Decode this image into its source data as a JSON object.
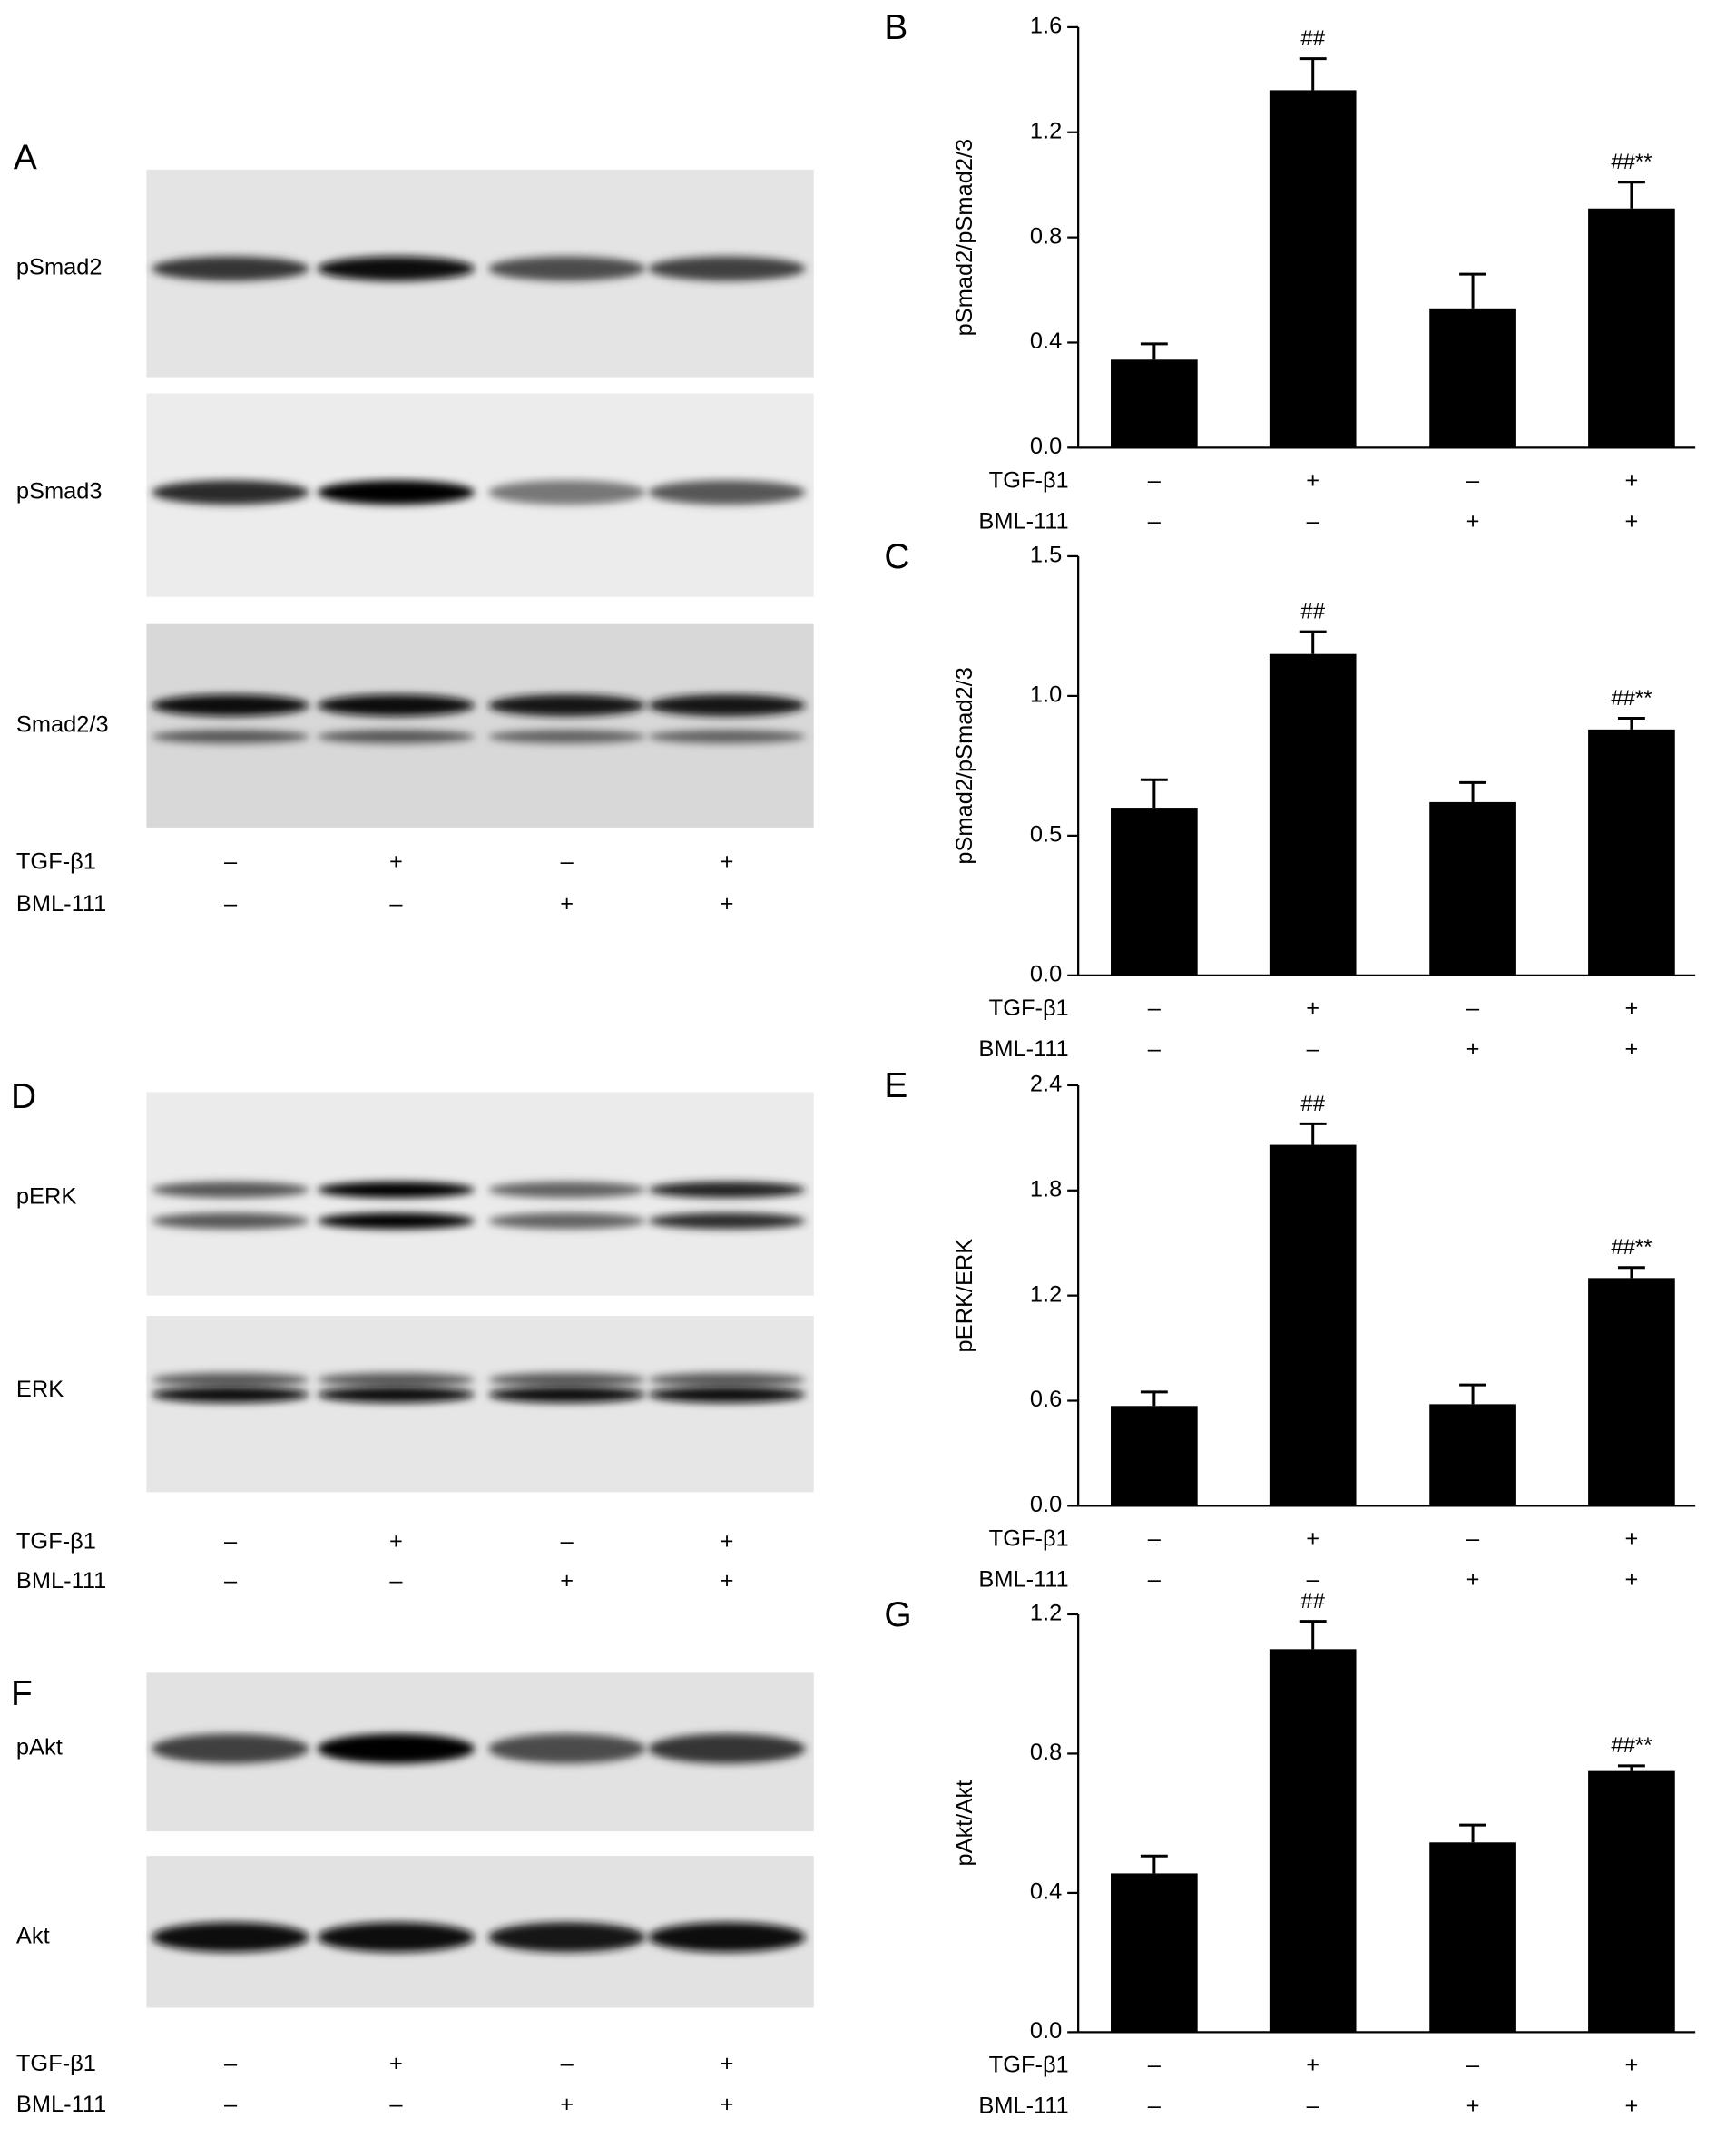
{
  "blots": [
    {
      "panel": "A",
      "proteins": [
        "pSmad2",
        "pSmad3",
        "Smad2/3"
      ],
      "treatments": [
        {
          "name": "TGF-β1",
          "signs": [
            "–",
            "+",
            "–",
            "+"
          ]
        },
        {
          "name": "BML-111",
          "signs": [
            "–",
            "–",
            "+",
            "+"
          ]
        }
      ]
    },
    {
      "panel": "D",
      "proteins": [
        "pERK",
        "ERK"
      ],
      "treatments": [
        {
          "name": "TGF-β1",
          "signs": [
            "–",
            "+",
            "–",
            "+"
          ]
        },
        {
          "name": "BML-111",
          "signs": [
            "–",
            "–",
            "+",
            "+"
          ]
        }
      ]
    },
    {
      "panel": "F",
      "proteins": [
        "pAkt",
        "Akt"
      ],
      "treatments": [
        {
          "name": "TGF-β1",
          "signs": [
            "–",
            "+",
            "–",
            "+"
          ]
        },
        {
          "name": "BML-111",
          "signs": [
            "–",
            "–",
            "+",
            "+"
          ]
        }
      ]
    }
  ],
  "chart_data": [
    {
      "type": "bar",
      "panel": "B",
      "ylabel": "pSmad2/pSmad2/3",
      "color": "#000000",
      "values": [
        0.335,
        1.36,
        0.53,
        0.91
      ],
      "errors": [
        0.06,
        0.12,
        0.13,
        0.1
      ],
      "annotations": [
        null,
        "##",
        null,
        "##**"
      ],
      "ylim": [
        0,
        1.6
      ],
      "yticks": [
        {
          "value": 0,
          "label": "0.0"
        },
        0.4,
        0.8,
        1.2,
        1.6
      ],
      "treatments": [
        {
          "name": "TGF-β1",
          "signs": [
            "–",
            "+",
            "–",
            "+"
          ]
        },
        {
          "name": "BML-111",
          "signs": [
            "–",
            "–",
            "+",
            "+"
          ]
        }
      ]
    },
    {
      "type": "bar",
      "panel": "C",
      "ylabel": "pSmad2/pSmad2/3",
      "color": "#000000",
      "values": [
        0.6,
        1.15,
        0.62,
        0.88
      ],
      "errors": [
        0.1,
        0.08,
        0.07,
        0.04
      ],
      "annotations": [
        null,
        "##",
        null,
        "##**"
      ],
      "ylim": [
        0,
        1.5
      ],
      "yticks": [
        {
          "value": 0,
          "label": "0.0"
        },
        0.5,
        {
          "value": 1,
          "label": "1.0"
        },
        1.5
      ],
      "treatments": [
        {
          "name": "TGF-β1",
          "signs": [
            "–",
            "+",
            "–",
            "+"
          ]
        },
        {
          "name": "BML-111",
          "signs": [
            "–",
            "–",
            "+",
            "+"
          ]
        }
      ]
    },
    {
      "type": "bar",
      "panel": "E",
      "ylabel": "pERK/ERK",
      "color": "#000000",
      "values": [
        0.57,
        2.06,
        0.58,
        1.3
      ],
      "errors": [
        0.08,
        0.12,
        0.11,
        0.06
      ],
      "annotations": [
        null,
        "##",
        null,
        "##**"
      ],
      "ylim": [
        0,
        2.4
      ],
      "yticks": [
        {
          "value": 0,
          "label": "0.0"
        },
        0.6,
        1.2,
        1.8,
        2.4
      ],
      "treatments": [
        {
          "name": "TGF-β1",
          "signs": [
            "–",
            "+",
            "–",
            "+"
          ]
        },
        {
          "name": "BML-111",
          "signs": [
            "–",
            "–",
            "+",
            "+"
          ]
        }
      ]
    },
    {
      "type": "bar",
      "panel": "G",
      "ylabel": "pAkt/Akt",
      "color": "#000000",
      "values": [
        0.456,
        1.1,
        0.545,
        0.75
      ],
      "errors": [
        0.05,
        0.08,
        0.05,
        0.015
      ],
      "annotations": [
        null,
        "##",
        null,
        "##**"
      ],
      "ylim": [
        0,
        1.2
      ],
      "yticks": [
        {
          "value": 0,
          "label": "0.0"
        },
        0.4,
        0.8,
        1.2
      ],
      "treatments": [
        {
          "name": "TGF-β1",
          "signs": [
            "–",
            "+",
            "–",
            "+"
          ]
        },
        {
          "name": "BML-111",
          "signs": [
            "–",
            "–",
            "+",
            "+"
          ]
        }
      ]
    }
  ]
}
